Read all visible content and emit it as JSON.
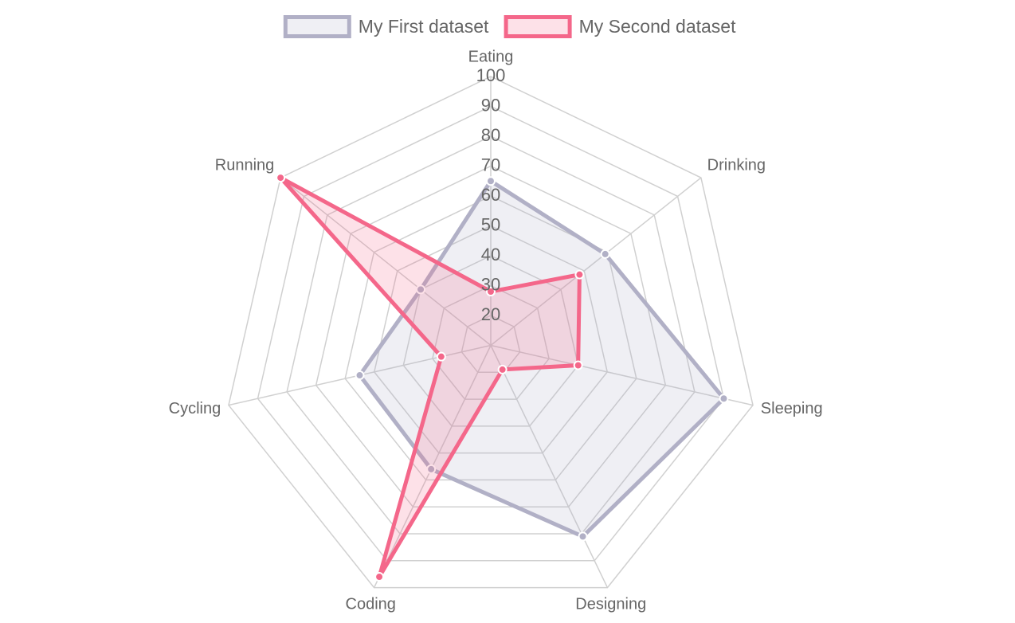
{
  "chart_data": {
    "type": "radar",
    "categories": [
      "Eating",
      "Drinking",
      "Sleeping",
      "Designing",
      "Coding",
      "Cycling",
      "Running"
    ],
    "series": [
      {
        "name": "My First dataset",
        "color": "#b1b0c6",
        "values": [
          65,
          59,
          90,
          81,
          56,
          55,
          40
        ]
      },
      {
        "name": "My Second dataset",
        "color": "#f4678a",
        "values": [
          28,
          48,
          40,
          19,
          96,
          27,
          100
        ]
      }
    ],
    "ylim": [
      10,
      100
    ],
    "yticks": [
      20,
      30,
      40,
      50,
      60,
      70,
      80,
      90,
      100
    ],
    "grid": true,
    "legend": "top"
  }
}
